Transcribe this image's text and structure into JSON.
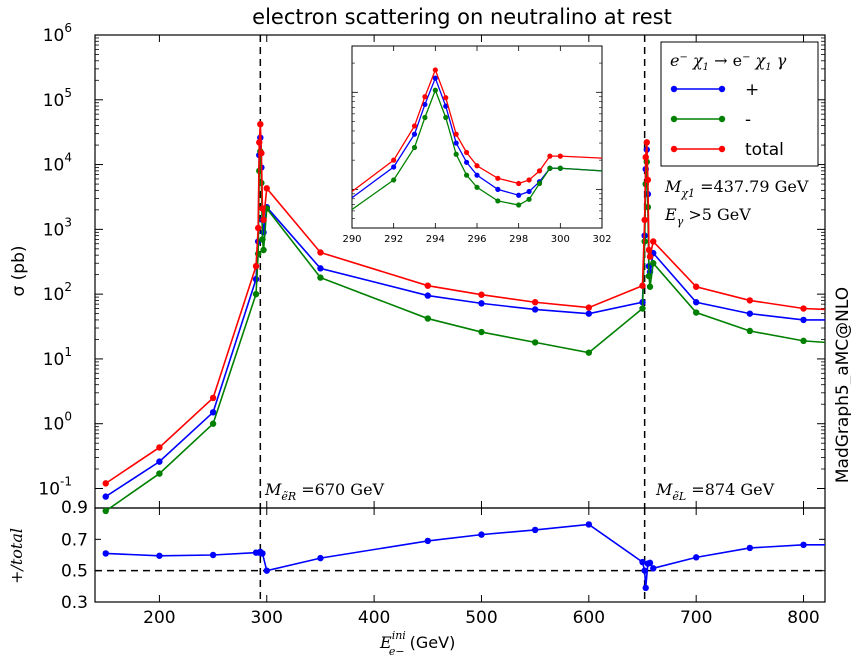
{
  "chart_data": [
    {
      "type": "line",
      "title": "electron scattering on neutralino at rest",
      "ylabel": "σ (pb)",
      "yscale": "log",
      "xlim": [
        140,
        820
      ],
      "ylim": [
        0.05,
        1000000
      ],
      "grid": false,
      "yticks": [
        {
          "value": 0.1,
          "label": "10",
          "exp": "-1"
        },
        {
          "value": 1,
          "label": "10",
          "exp": "0"
        },
        {
          "value": 10,
          "label": "10",
          "exp": "1"
        },
        {
          "value": 100,
          "label": "10",
          "exp": "2"
        },
        {
          "value": 1000,
          "label": "10",
          "exp": "3"
        },
        {
          "value": 10000,
          "label": "10",
          "exp": "4"
        },
        {
          "value": 100000,
          "label": "10",
          "exp": "5"
        },
        {
          "value": 1000000,
          "label": "10",
          "exp": "6"
        }
      ],
      "ybottom_label": "0.9",
      "legend": {
        "placement": "top-right",
        "title_parts": [
          "e",
          "−",
          " χ",
          "1",
          " → e",
          "−",
          " χ",
          "1",
          " γ"
        ],
        "entries": [
          "+",
          "-",
          "total"
        ]
      },
      "colors": {
        "plus": "#0000ff",
        "minus": "#008000",
        "total": "#ff0000"
      },
      "vlines": [
        294,
        652
      ],
      "annotations": {
        "mchi": {
          "prefix": "M",
          "sub": "χ1",
          "value": " =437.79 GeV"
        },
        "egamma": {
          "prefix": "E",
          "sub": "γ",
          "value": " >5 GeV"
        },
        "mer": {
          "prefix": "M",
          "sub": "ẽR",
          "value": " =670 GeV"
        },
        "mel": {
          "prefix": "M",
          "sub": "ẽL",
          "value": " =874 GeV"
        }
      },
      "series": [
        {
          "name": "+",
          "color": "#0000ff",
          "x": [
            150,
            200,
            250,
            290,
            292,
            293,
            294,
            295,
            296,
            297,
            300,
            350,
            450,
            500,
            550,
            600,
            650,
            652,
            653,
            654,
            655,
            656,
            657,
            660,
            700,
            750,
            800,
            820
          ],
          "y": [
            0.075,
            0.26,
            1.5,
            170,
            650,
            14000,
            26000,
            9000,
            1400,
            900,
            2200,
            250,
            95,
            72,
            58,
            50,
            75,
            800,
            8500,
            17000,
            3500,
            270,
            220,
            430,
            75,
            50,
            40,
            40
          ]
        },
        {
          "name": "-",
          "color": "#008000",
          "x": [
            150,
            200,
            250,
            290,
            292,
            293,
            294,
            295,
            296,
            297,
            300,
            350,
            450,
            500,
            550,
            600,
            650,
            652,
            653,
            654,
            655,
            656,
            657,
            660,
            700,
            750,
            800,
            820
          ],
          "y": [
            0.045,
            0.17,
            1.0,
            100,
            420,
            8000,
            16000,
            5200,
            700,
            480,
            2100,
            180,
            42,
            26,
            18,
            12.5,
            60,
            650,
            5000,
            11000,
            2200,
            190,
            130,
            300,
            52,
            27,
            19,
            18
          ]
        },
        {
          "name": "total",
          "color": "#ff0000",
          "x": [
            150,
            200,
            250,
            290,
            292,
            293,
            294,
            295,
            296,
            297,
            300,
            350,
            450,
            500,
            550,
            600,
            650,
            652,
            653,
            654,
            655,
            656,
            657,
            660,
            700,
            750,
            800,
            820
          ],
          "y": [
            0.12,
            0.43,
            2.5,
            270,
            1050,
            22000,
            42000,
            15000,
            2100,
            1400,
            4300,
            440,
            135,
            98,
            75,
            62,
            135,
            1400,
            13000,
            22000,
            5800,
            480,
            380,
            650,
            130,
            80,
            60,
            58
          ]
        }
      ]
    },
    {
      "type": "line",
      "yscale": "log",
      "xlim": [
        290,
        302
      ],
      "ylim": [
        4000,
        300000
      ],
      "xticks": [
        290,
        292,
        294,
        296,
        298,
        300,
        302
      ],
      "series": [
        {
          "name": "+",
          "color": "#0000ff",
          "x": [
            290,
            292,
            293,
            293.5,
            294,
            294.5,
            295,
            295.5,
            296,
            297,
            298,
            298.5,
            299,
            299.5,
            300,
            302
          ],
          "y": [
            8200,
            17000,
            37000,
            75000,
            140000,
            72000,
            30000,
            19000,
            14000,
            10000,
            8700,
            9500,
            12000,
            16500,
            16500,
            15500
          ]
        },
        {
          "name": "-",
          "color": "#008000",
          "x": [
            290,
            292,
            293,
            293.5,
            294,
            294.5,
            295,
            295.5,
            296,
            297,
            298,
            298.5,
            299,
            299.5,
            300,
            302
          ],
          "y": [
            6200,
            12500,
            27000,
            55000,
            105000,
            55000,
            23000,
            14000,
            10500,
            7600,
            6900,
            7900,
            11500,
            16500,
            16500,
            15500
          ]
        },
        {
          "name": "total",
          "color": "#ff0000",
          "x": [
            290,
            292,
            293,
            293.5,
            294,
            294.5,
            295,
            295.5,
            296,
            297,
            298,
            298.5,
            299,
            299.5,
            300,
            302
          ],
          "y": [
            9500,
            20000,
            45000,
            90000,
            170000,
            88000,
            37000,
            24000,
            17500,
            13000,
            11500,
            12500,
            15500,
            22000,
            22000,
            21000
          ]
        }
      ]
    },
    {
      "type": "line",
      "ylabel": "+/total",
      "xlabel": {
        "prefix": "E",
        "sup": "ini",
        "sub": "e−",
        "unit": " (GeV)"
      },
      "xlim": [
        140,
        820
      ],
      "ylim": [
        0.3,
        0.9
      ],
      "yticks": [
        0.3,
        0.5,
        0.7
      ],
      "ytick_labels": [
        "0.3",
        "0.5",
        "0.7"
      ],
      "xticks": [
        200,
        300,
        400,
        500,
        600,
        700,
        800
      ],
      "hline": 0.5,
      "vlines": [
        294,
        652
      ],
      "series": [
        {
          "name": "+",
          "color": "#0000ff",
          "x": [
            150,
            200,
            250,
            290,
            293,
            294,
            296,
            300,
            350,
            450,
            500,
            550,
            600,
            650,
            652,
            653,
            655,
            657,
            660,
            700,
            750,
            800,
            820
          ],
          "y": [
            0.61,
            0.595,
            0.6,
            0.615,
            0.615,
            0.62,
            0.61,
            0.5,
            0.58,
            0.69,
            0.73,
            0.76,
            0.795,
            0.555,
            0.5,
            0.39,
            0.545,
            0.55,
            0.515,
            0.585,
            0.645,
            0.665,
            0.665
          ]
        }
      ]
    }
  ],
  "side_text": "MadGraph5_aMC@NLO"
}
